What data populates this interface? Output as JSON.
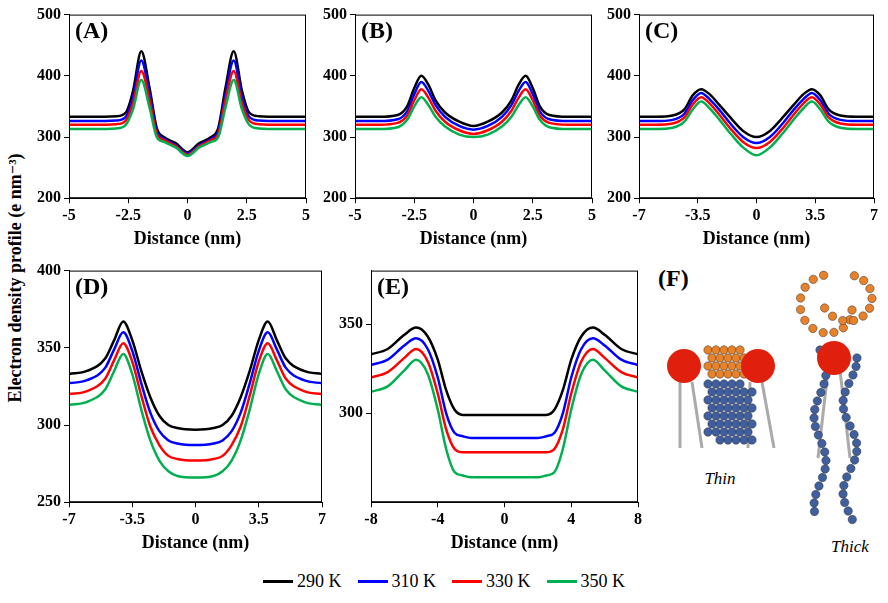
{
  "ylabel": "Electron density profile (e nm⁻³)",
  "legend": "bottom",
  "chart_data": [
    {
      "type": "line",
      "label": "(A)",
      "xlabel": "Distance (nm)",
      "grid": false,
      "xlim": [
        -5,
        5
      ],
      "xticks": [
        -5,
        -2.5,
        0,
        2.5,
        5
      ],
      "ylim": [
        200,
        500
      ],
      "yticks": [
        200,
        300,
        400,
        500
      ],
      "x": [
        -5,
        -4,
        -3,
        -2.6,
        -2.3,
        -1.95,
        -1.6,
        -1.3,
        -1,
        -0.5,
        0,
        0.5,
        1,
        1.3,
        1.6,
        1.95,
        2.3,
        2.6,
        3,
        4,
        5
      ],
      "series": [
        {
          "name": "290 K",
          "color": "#000000",
          "values": [
            333,
            333,
            334,
            340,
            375,
            440,
            380,
            315,
            300,
            290,
            275,
            290,
            300,
            315,
            380,
            440,
            375,
            340,
            334,
            333,
            333
          ]
        },
        {
          "name": "310 K",
          "color": "#0000ff",
          "values": [
            326,
            326,
            327,
            333,
            365,
            425,
            370,
            310,
            297,
            287,
            273,
            287,
            297,
            310,
            370,
            425,
            365,
            333,
            327,
            326,
            326
          ]
        },
        {
          "name": "330 K",
          "color": "#ff0000",
          "values": [
            320,
            320,
            321,
            327,
            355,
            408,
            360,
            305,
            295,
            285,
            271,
            285,
            295,
            305,
            360,
            408,
            355,
            327,
            321,
            320,
            320
          ]
        },
        {
          "name": "350 K",
          "color": "#00b050",
          "values": [
            313,
            313,
            314,
            320,
            345,
            393,
            348,
            300,
            292,
            283,
            269,
            283,
            292,
            300,
            348,
            393,
            345,
            320,
            314,
            313,
            313
          ]
        }
      ]
    },
    {
      "type": "line",
      "label": "(B)",
      "xlabel": "Distance (nm)",
      "grid": false,
      "xlim": [
        -5,
        5
      ],
      "xticks": [
        -5,
        -2.5,
        0,
        2.5,
        5
      ],
      "ylim": [
        200,
        500
      ],
      "yticks": [
        200,
        300,
        400,
        500
      ],
      "x": [
        -5,
        -4,
        -3.2,
        -2.8,
        -2.5,
        -2.2,
        -1.9,
        -1.6,
        -1.2,
        -0.6,
        0,
        0.6,
        1.2,
        1.6,
        1.9,
        2.2,
        2.5,
        2.8,
        3.2,
        4,
        5
      ],
      "series": [
        {
          "name": "290 K",
          "color": "#000000",
          "values": [
            333,
            333,
            336,
            350,
            380,
            400,
            385,
            360,
            340,
            325,
            318,
            325,
            340,
            360,
            385,
            400,
            380,
            350,
            336,
            333,
            333
          ]
        },
        {
          "name": "310 K",
          "color": "#0000ff",
          "values": [
            326,
            326,
            329,
            342,
            370,
            390,
            375,
            352,
            333,
            318,
            312,
            318,
            333,
            352,
            375,
            390,
            370,
            342,
            329,
            326,
            326
          ]
        },
        {
          "name": "330 K",
          "color": "#ff0000",
          "values": [
            320,
            320,
            323,
            335,
            360,
            378,
            364,
            343,
            325,
            311,
            305,
            311,
            325,
            343,
            364,
            378,
            360,
            335,
            323,
            320,
            320
          ]
        },
        {
          "name": "350 K",
          "color": "#00b050",
          "values": [
            313,
            313,
            316,
            328,
            350,
            365,
            352,
            333,
            317,
            304,
            300,
            304,
            317,
            333,
            352,
            365,
            350,
            328,
            316,
            313,
            313
          ]
        }
      ]
    },
    {
      "type": "line",
      "label": "(C)",
      "xlabel": "Distance (nm)",
      "grid": false,
      "xlim": [
        -7,
        7
      ],
      "xticks": [
        -7,
        -3.5,
        0,
        3.5,
        7
      ],
      "ylim": [
        200,
        500
      ],
      "yticks": [
        200,
        300,
        400,
        500
      ],
      "x": [
        -7,
        -6,
        -5,
        -4.3,
        -3.8,
        -3.3,
        -2.8,
        -2.2,
        -1.5,
        -0.8,
        0,
        0.8,
        1.5,
        2.2,
        2.8,
        3.3,
        3.8,
        4.3,
        5,
        6,
        7
      ],
      "series": [
        {
          "name": "290 K",
          "color": "#000000",
          "values": [
            333,
            333,
            335,
            345,
            368,
            378,
            370,
            352,
            330,
            310,
            300,
            310,
            330,
            352,
            370,
            378,
            368,
            345,
            335,
            333,
            333
          ]
        },
        {
          "name": "310 K",
          "color": "#0000ff",
          "values": [
            326,
            326,
            328,
            338,
            360,
            372,
            362,
            344,
            320,
            300,
            290,
            300,
            320,
            344,
            362,
            372,
            360,
            338,
            328,
            326,
            326
          ]
        },
        {
          "name": "330 K",
          "color": "#ff0000",
          "values": [
            320,
            320,
            322,
            332,
            353,
            365,
            355,
            336,
            312,
            292,
            282,
            292,
            312,
            336,
            355,
            365,
            353,
            332,
            322,
            320,
            320
          ]
        },
        {
          "name": "350 K",
          "color": "#00b050",
          "values": [
            313,
            313,
            315,
            325,
            345,
            358,
            347,
            328,
            304,
            283,
            270,
            283,
            304,
            328,
            347,
            358,
            345,
            325,
            315,
            313,
            313
          ]
        }
      ]
    },
    {
      "type": "line",
      "label": "(D)",
      "xlabel": "Distance (nm)",
      "grid": false,
      "xlim": [
        -7,
        7
      ],
      "xticks": [
        -7,
        -3.5,
        0,
        3.5,
        7
      ],
      "ylim": [
        250,
        400
      ],
      "yticks": [
        250,
        300,
        350,
        400
      ],
      "x": [
        -7,
        -6,
        -5,
        -4.5,
        -4,
        -3.5,
        -3,
        -2.5,
        -2,
        -1.5,
        -1,
        0,
        1,
        1.5,
        2,
        2.5,
        3,
        3.5,
        4,
        4.5,
        5,
        6,
        7
      ],
      "series": [
        {
          "name": "290 K",
          "color": "#000000",
          "values": [
            333,
            335,
            343,
            355,
            367,
            355,
            335,
            318,
            306,
            300,
            298,
            297,
            298,
            300,
            306,
            318,
            335,
            355,
            367,
            355,
            343,
            335,
            333
          ]
        },
        {
          "name": "310 K",
          "color": "#0000ff",
          "values": [
            327,
            329,
            337,
            349,
            360,
            348,
            327,
            308,
            296,
            290,
            288,
            287,
            288,
            290,
            296,
            308,
            327,
            348,
            360,
            349,
            337,
            329,
            327
          ]
        },
        {
          "name": "330 K",
          "color": "#ff0000",
          "values": [
            320,
            322,
            330,
            342,
            353,
            341,
            319,
            299,
            287,
            280,
            278,
            277,
            278,
            280,
            287,
            299,
            319,
            341,
            353,
            342,
            330,
            322,
            320
          ]
        },
        {
          "name": "350 K",
          "color": "#00b050",
          "values": [
            313,
            315,
            323,
            335,
            346,
            333,
            310,
            290,
            277,
            270,
            267,
            266,
            267,
            270,
            277,
            290,
            310,
            333,
            346,
            335,
            323,
            315,
            313
          ]
        }
      ]
    },
    {
      "type": "line",
      "label": "(E)",
      "xlabel": "Distance (nm)",
      "grid": false,
      "xlim": [
        -8,
        8
      ],
      "xticks": [
        -8,
        -4,
        0,
        4,
        8
      ],
      "ylim": [
        250,
        380
      ],
      "yticks": [
        300,
        350
      ],
      "x": [
        -8,
        -7,
        -6,
        -5.3,
        -4.6,
        -4,
        -3.5,
        -3,
        -2.5,
        -2,
        -1,
        0,
        1,
        2,
        2.5,
        3,
        3.5,
        4,
        4.6,
        5.3,
        6,
        7,
        8
      ],
      "series": [
        {
          "name": "290 K",
          "color": "#000000",
          "values": [
            333,
            336,
            344,
            348,
            343,
            330,
            313,
            302,
            299,
            299,
            299,
            299,
            299,
            299,
            299,
            302,
            313,
            330,
            343,
            348,
            344,
            336,
            333
          ]
        },
        {
          "name": "310 K",
          "color": "#0000ff",
          "values": [
            327,
            330,
            338,
            342,
            336,
            320,
            300,
            289,
            287,
            286,
            286,
            286,
            286,
            286,
            287,
            289,
            300,
            320,
            336,
            342,
            338,
            330,
            327
          ]
        },
        {
          "name": "330 K",
          "color": "#ff0000",
          "values": [
            320,
            323,
            331,
            336,
            329,
            311,
            291,
            280,
            278,
            278,
            278,
            278,
            278,
            278,
            278,
            280,
            291,
            311,
            329,
            336,
            331,
            323,
            320
          ]
        },
        {
          "name": "350 K",
          "color": "#00b050",
          "values": [
            312,
            315,
            324,
            330,
            322,
            302,
            280,
            267,
            265,
            264,
            264,
            264,
            264,
            264,
            265,
            267,
            280,
            302,
            322,
            330,
            324,
            315,
            312
          ]
        }
      ]
    }
  ],
  "diagram": {
    "label": "(F)",
    "captions": [
      "Thin",
      "Thick"
    ]
  }
}
